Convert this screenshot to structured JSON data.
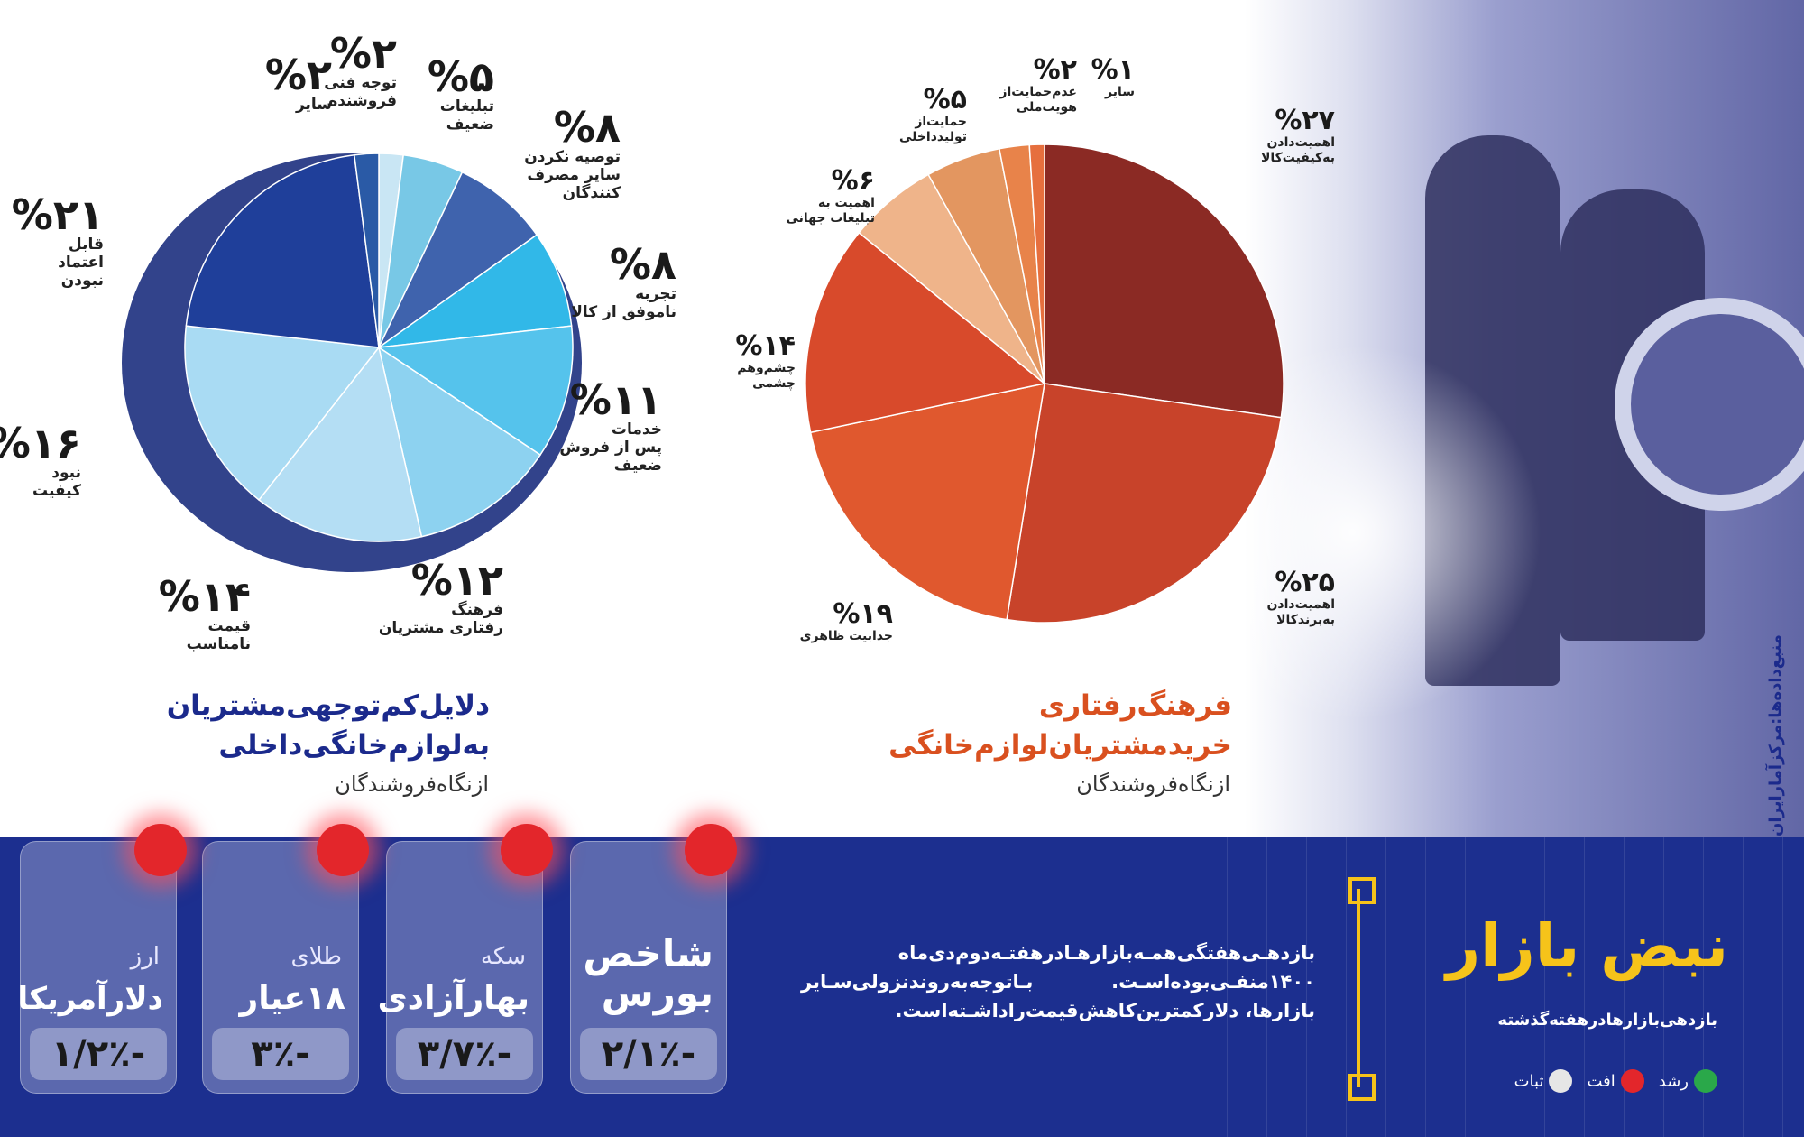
{
  "chart_data": [
    {
      "type": "pie",
      "title": "دلایل‌کم‌توجهی‌مشتریان به‌لوازم‌خانگی‌داخلی",
      "subtitle": "ازنگاه‌فروشندگان",
      "slices": [
        {
          "pct": "%۲",
          "label": "توجه فنی\nفروشنده",
          "value": 2,
          "color": "#c9e6f4"
        },
        {
          "pct": "%۵",
          "label": "تبلیغات\nضعیف",
          "value": 5,
          "color": "#78c8e6"
        },
        {
          "pct": "%۸",
          "label": "توصیه نکردن\nسایر مصرف\nکنندگان",
          "value": 8,
          "color": "#3f63ad"
        },
        {
          "pct": "%۸",
          "label": "تجربه\nناموفق از کالا",
          "value": 8,
          "color": "#31b8e8"
        },
        {
          "pct": "%۱۱",
          "label": "خدمات\nپس از فروش\nضعیف",
          "value": 11,
          "color": "#55c3ec"
        },
        {
          "pct": "%۱۲",
          "label": "فرهنگ\nرفتاری مشتریان",
          "value": 12,
          "color": "#8dd2f0"
        },
        {
          "pct": "%۱۴",
          "label": "قیمت\nنامناسب",
          "value": 14,
          "color": "#b4def4"
        },
        {
          "pct": "%۱۶",
          "label": "نبود\nکیفیت",
          "value": 16,
          "color": "#a9dbf3"
        },
        {
          "pct": "%۲۱",
          "label": "قابل\nاعتماد\nنبودن",
          "value": 21,
          "color": "#1f3f9a"
        },
        {
          "pct": "%۲",
          "label": "سایر",
          "value": 2,
          "color": "#2a5aa6"
        }
      ]
    },
    {
      "type": "pie",
      "title": "فرهنگ‌رفتاری خریدمشتریان‌لوازم‌خانگی",
      "subtitle": "ازنگاه‌فروشندگان",
      "slices": [
        {
          "pct": "%۲۷",
          "label": "اهمیت‌دادن\nبه‌کیفیت‌کالا",
          "value": 27,
          "color": "#8b2a24"
        },
        {
          "pct": "%۲۵",
          "label": "اهمیت‌دادن\nبه‌برندکالا",
          "value": 25,
          "color": "#c8432a"
        },
        {
          "pct": "%۱۹",
          "label": "جذابیت ظاهری",
          "value": 19,
          "color": "#e0582e"
        },
        {
          "pct": "%۱۴",
          "label": "چشم‌وهم\nچشمی",
          "value": 14,
          "color": "#d84a2b"
        },
        {
          "pct": "%۶",
          "label": "اهمیت به\nتبلیغات جهانی",
          "value": 6,
          "color": "#efb48a"
        },
        {
          "pct": "%۵",
          "label": "حمایت‌از\nتولیدداخلی",
          "value": 5,
          "color": "#e39660"
        },
        {
          "pct": "%۲",
          "label": "عدم‌حمایت‌از\nهویت‌ملی",
          "value": 2,
          "color": "#e8834a"
        },
        {
          "pct": "%۱",
          "label": "سایر",
          "value": 1,
          "color": "#e66f3e"
        }
      ]
    }
  ],
  "source": "منبع‌داده‌ها:مرکزآمارایران",
  "pulse": {
    "title": "نبض بازار",
    "subtitle": "بازدهی‌بازارهادرهفته‌گذشته",
    "legend": [
      {
        "label": "رشد",
        "color": "#2aa84a"
      },
      {
        "label": "افت",
        "color": "#e3262b"
      },
      {
        "label": "ثبات",
        "color": "#e6e6e6"
      }
    ],
    "description": "بازدهـی‌هفتگی‌همـه‌بازارهـادرهفتـه‌دوم‌دی‌ماه ۱۴۰۰منفـی‌بوده‌اسـت. بـاتوجه‌به‌روندنزولی‌سـایر بازارها، دلارکمترین‌کاهش‌قیمت‌راداشـته‌است.",
    "cards": [
      {
        "sub": "",
        "name": "شاخص\nبورس",
        "value": "-۲/۱٪",
        "status": "افت"
      },
      {
        "sub": "سکه",
        "name": "بهارآزادی",
        "value": "-۳/۷٪",
        "status": "افت"
      },
      {
        "sub": "طلای",
        "name": "۱۸عیار",
        "value": "-۳٪",
        "status": "افت"
      },
      {
        "sub": "ارز",
        "name": "دلارآمریکا",
        "value": "-۱/۲٪",
        "status": "افت"
      }
    ]
  }
}
